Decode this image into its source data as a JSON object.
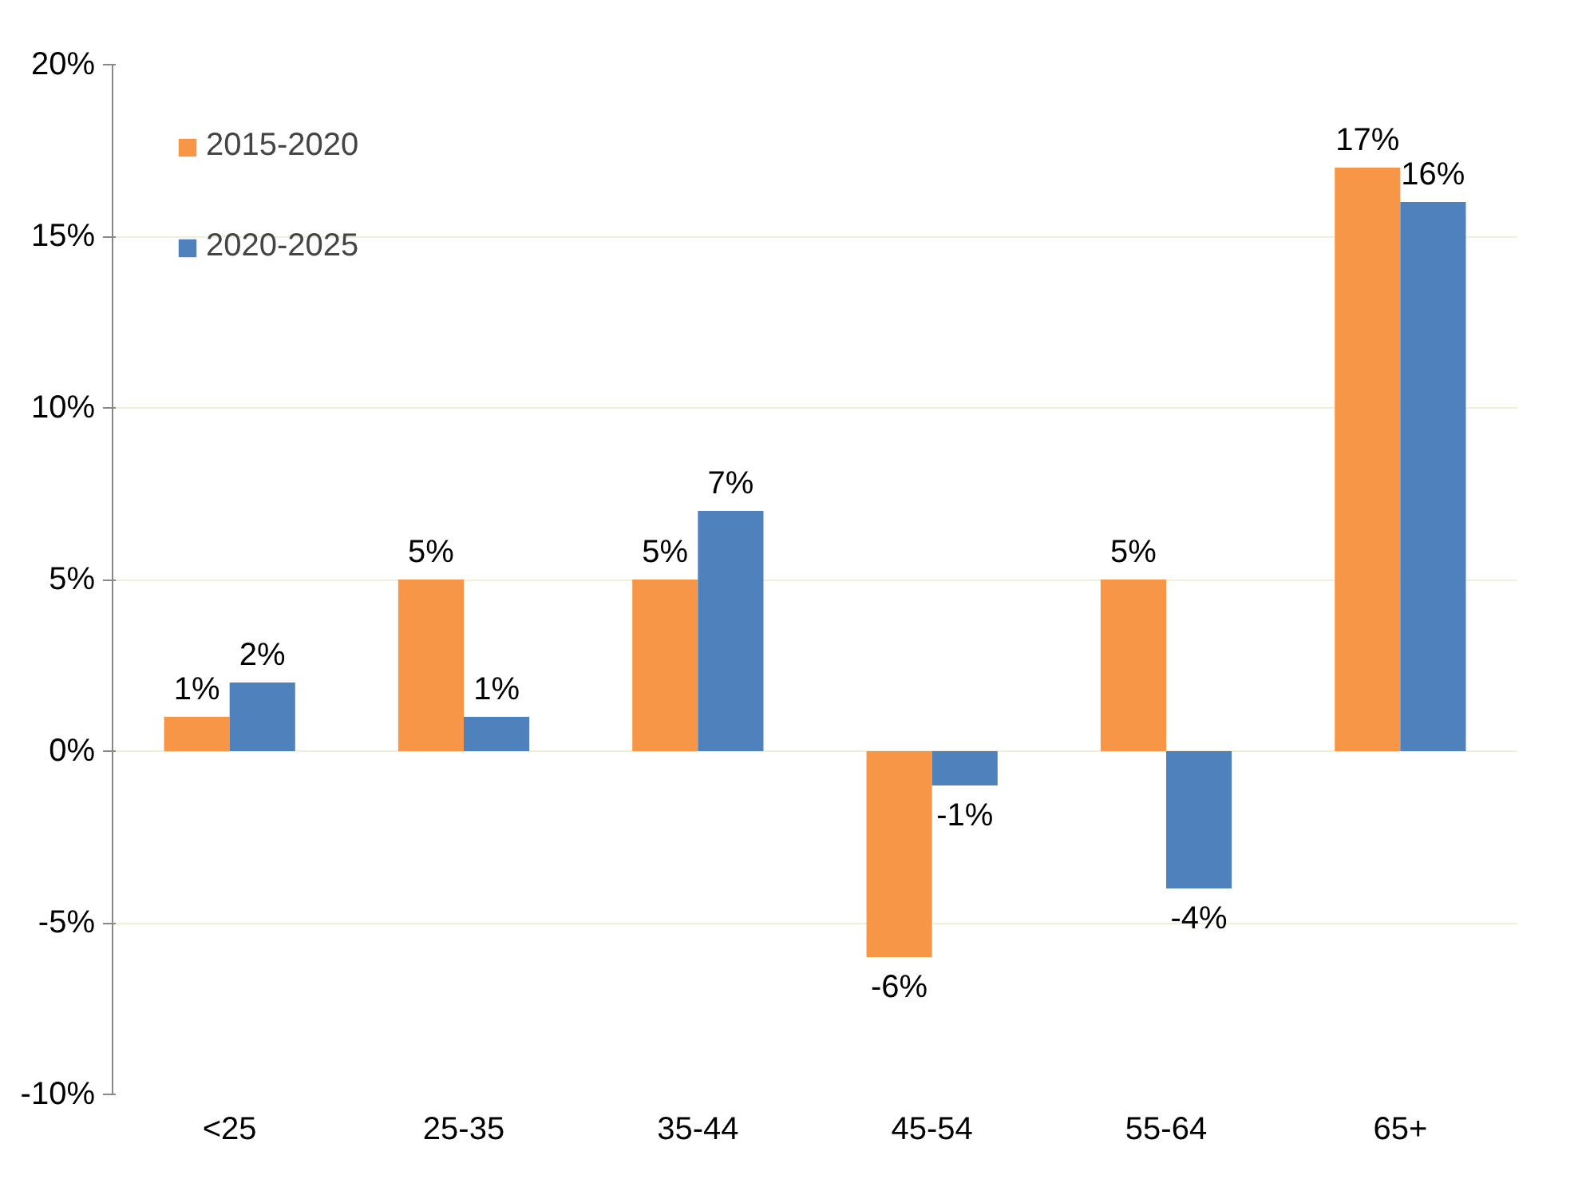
{
  "chart_data": {
    "type": "bar",
    "categories": [
      "<25",
      "25-35",
      "35-44",
      "45-54",
      "55-64",
      "65+"
    ],
    "series": [
      {
        "name": "2015-2020",
        "color": "#f79646",
        "values": [
          1,
          5,
          5,
          -6,
          5,
          17
        ],
        "value_labels": [
          "1%",
          "5%",
          "5%",
          "-6%",
          "5%",
          "17%"
        ]
      },
      {
        "name": "2020-2025",
        "color": "#4f81bd",
        "values": [
          2,
          1,
          7,
          -1,
          -4,
          16
        ],
        "value_labels": [
          "2%",
          "1%",
          "7%",
          "-1%",
          "-4%",
          "16%"
        ]
      }
    ],
    "ylim": [
      -10,
      20
    ],
    "yticks": [
      {
        "value": -10,
        "label": "-10%"
      },
      {
        "value": -5,
        "label": "-5%"
      },
      {
        "value": 0,
        "label": "0%"
      },
      {
        "value": 5,
        "label": "5%"
      },
      {
        "value": 10,
        "label": "10%"
      },
      {
        "value": 15,
        "label": "15%"
      },
      {
        "value": 20,
        "label": "20%"
      }
    ],
    "grid": "y",
    "legend": "top left"
  }
}
